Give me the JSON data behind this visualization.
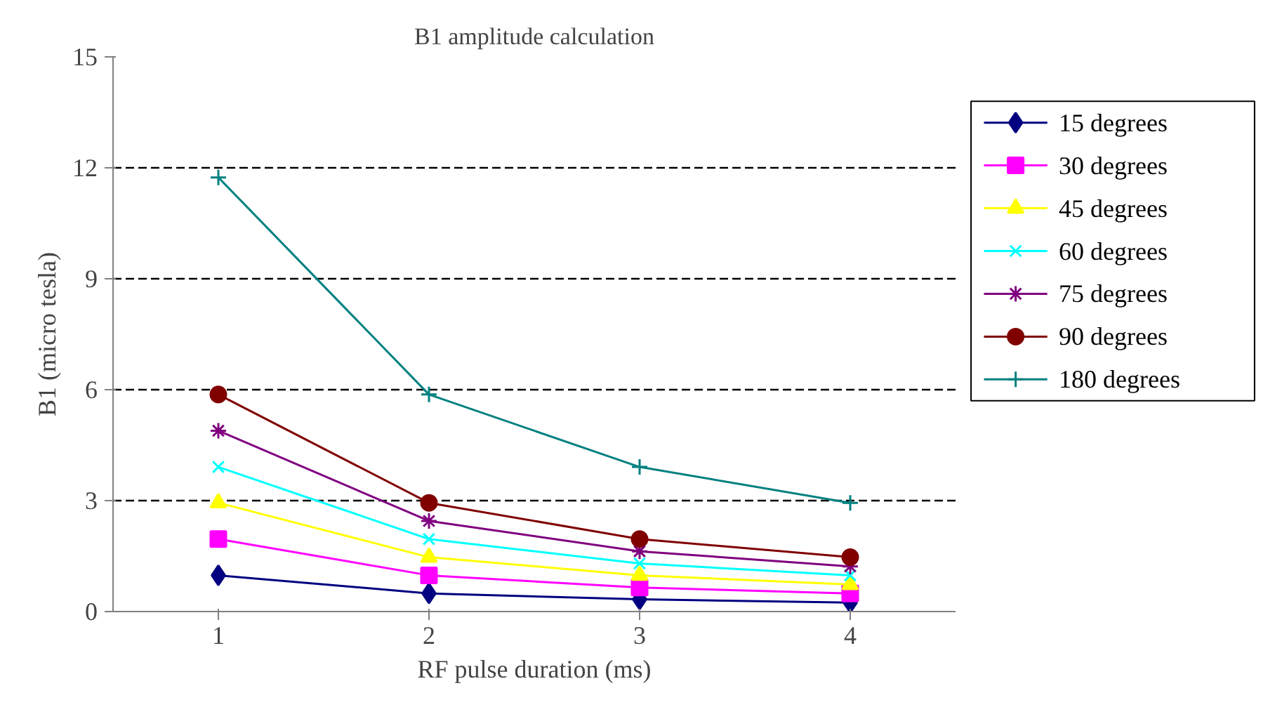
{
  "chart_data": {
    "type": "line",
    "title": "B1 amplitude calculation",
    "xlabel": "RF pulse duration (ms)",
    "ylabel": "B1 (micro tesla)",
    "categories": [
      "1",
      "2",
      "3",
      "4"
    ],
    "ylim": [
      0,
      15
    ],
    "yticks": [
      0,
      3,
      6,
      9,
      12,
      15
    ],
    "grid": "y",
    "legend": "right",
    "line_style": "solid",
    "series": [
      {
        "name": "15 degrees",
        "color": "#000080",
        "marker": "diamond",
        "values": [
          0.98,
          0.49,
          0.33,
          0.24
        ]
      },
      {
        "name": "30 degrees",
        "color": "#ff00ff",
        "marker": "square",
        "values": [
          1.96,
          0.98,
          0.65,
          0.49
        ]
      },
      {
        "name": "45 degrees",
        "color": "#ffff00",
        "marker": "triangle",
        "values": [
          2.94,
          1.47,
          0.98,
          0.73
        ]
      },
      {
        "name": "60 degrees",
        "color": "#00ffff",
        "marker": "x",
        "values": [
          3.91,
          1.96,
          1.3,
          0.98
        ]
      },
      {
        "name": "75 degrees",
        "color": "#800080",
        "marker": "cross",
        "values": [
          4.89,
          2.45,
          1.63,
          1.22
        ]
      },
      {
        "name": "90 degrees",
        "color": "#800000",
        "marker": "circle",
        "values": [
          5.87,
          2.94,
          1.96,
          1.47
        ]
      },
      {
        "name": "180 degrees",
        "color": "#008080",
        "marker": "plus",
        "values": [
          11.74,
          5.87,
          3.91,
          2.94
        ]
      }
    ]
  }
}
